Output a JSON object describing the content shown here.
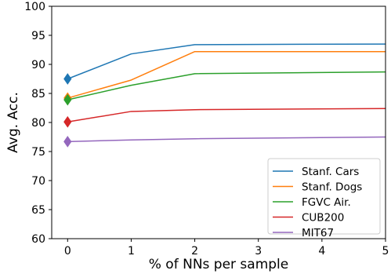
{
  "chart_data": {
    "type": "line",
    "xlabel": "% of NNs per sample",
    "ylabel": "Avg. Acc.",
    "xlim": [
      -0.25,
      5
    ],
    "ylim": [
      60,
      100
    ],
    "xticks": [
      "0",
      "1",
      "2",
      "3",
      "4",
      "5"
    ],
    "yticks": [
      "60",
      "65",
      "70",
      "75",
      "80",
      "85",
      "90",
      "95",
      "100"
    ],
    "x": [
      0,
      1,
      2,
      5
    ],
    "grid": false,
    "legend_position": "lower-right",
    "marker": "diamond at x=0",
    "series": [
      {
        "name": "Stanf. Cars",
        "color": "#1f77b4",
        "values": [
          87.5,
          91.8,
          93.4,
          93.5
        ]
      },
      {
        "name": "Stanf. Dogs",
        "color": "#ff7f0e",
        "values": [
          84.2,
          87.3,
          92.2,
          92.2
        ]
      },
      {
        "name": "FGVC Air.",
        "color": "#2ca02c",
        "values": [
          83.9,
          86.4,
          88.4,
          88.7
        ]
      },
      {
        "name": "CUB200",
        "color": "#d62728",
        "values": [
          80.1,
          81.9,
          82.2,
          82.4
        ]
      },
      {
        "name": "MIT67",
        "color": "#9467bd",
        "values": [
          76.7,
          77.0,
          77.2,
          77.5
        ]
      }
    ]
  }
}
